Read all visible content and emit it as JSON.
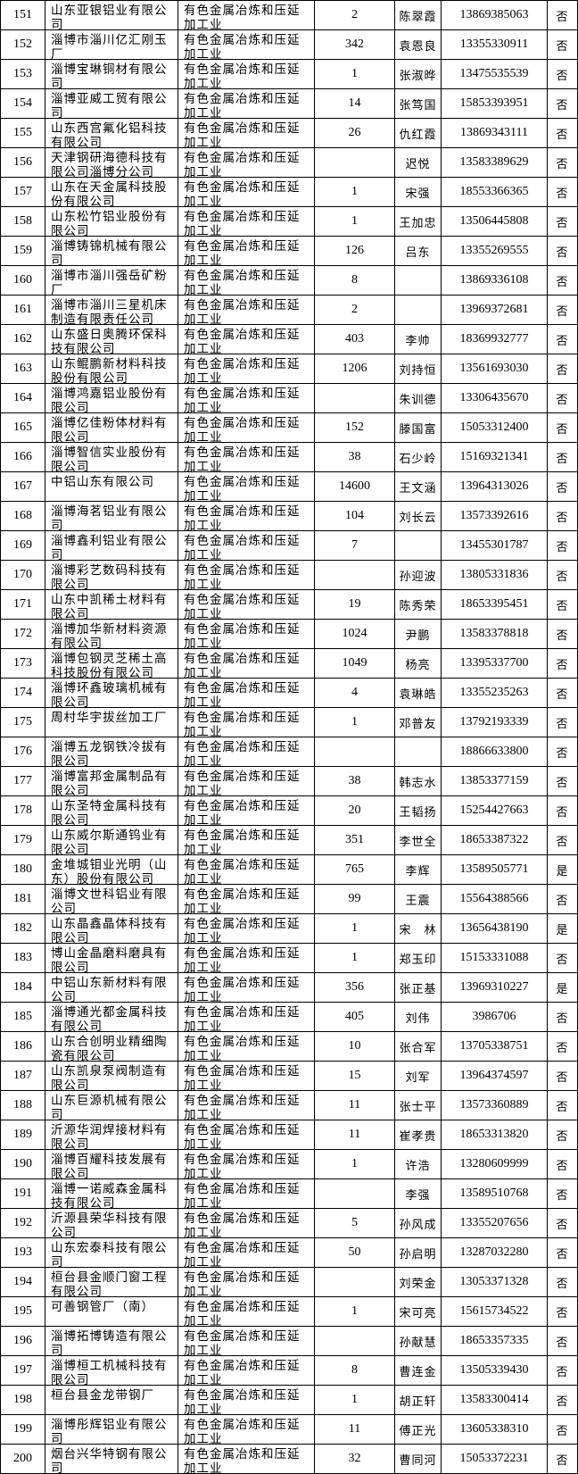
{
  "table": {
    "rows": [
      [
        151,
        "山东亚银铝业有限公司",
        "有色金属冶炼和压延加工业",
        2,
        "陈翠霞",
        "13869385063",
        "否"
      ],
      [
        152,
        "淄博市淄川亿汇刚玉厂",
        "有色金属冶炼和压延加工业",
        342,
        "袁恩良",
        "13355330911",
        "否"
      ],
      [
        153,
        "淄博宝琳铜材有限公司",
        "有色金属冶炼和压延加工业",
        1,
        "张淑晔",
        "13475535539",
        "否"
      ],
      [
        154,
        "淄博亚威工贸有限公司",
        "有色金属冶炼和压延加工业",
        14,
        "张笃国",
        "15853393951",
        "否"
      ],
      [
        155,
        "山东西宫氟化铝科技有限公司",
        "有色金属冶炼和压延加工业",
        26,
        "仇红霞",
        "13869343111",
        "否"
      ],
      [
        156,
        "天津钢研海德科技有限公司淄博分公司",
        "有色金属冶炼和压延加工业",
        null,
        "迟悦",
        "13583389629",
        "否"
      ],
      [
        157,
        "山东在天金属科技股份有限公司",
        "有色金属冶炼和压延加工业",
        1,
        "宋强",
        "18553366365",
        "否"
      ],
      [
        158,
        "山东松竹铝业股份有限公司",
        "有色金属冶炼和压延加工业",
        1,
        "王加忠",
        "13506445808",
        "否"
      ],
      [
        159,
        "淄博铸锦机械有限公司",
        "有色金属冶炼和压延加工业",
        126,
        "吕东",
        "13355269555",
        "否"
      ],
      [
        160,
        "淄博市淄川强岳矿粉厂",
        "有色金属冶炼和压延加工业",
        8,
        null,
        "13869336108",
        "否"
      ],
      [
        161,
        "淄博市淄川三星机床制造有限责任公司",
        "有色金属冶炼和压延加工业",
        2,
        null,
        "13969372681",
        "否"
      ],
      [
        162,
        "山东盛日奥腾环保科技有限公司",
        "有色金属冶炼和压延加工业",
        403,
        "李帅",
        "18369932777",
        "否"
      ],
      [
        163,
        "山东鲲鹏新材料科技股份有限公司",
        "有色金属冶炼和压延加工业",
        1206,
        "刘持恒",
        "13561693030",
        "否"
      ],
      [
        164,
        "淄博鸿嘉铝业股份有限公司",
        "有色金属冶炼和压延加工业",
        null,
        "朱训德",
        "13306435670",
        "否"
      ],
      [
        165,
        "淄博亿佳粉体材料有限公司",
        "有色金属冶炼和压延加工业",
        152,
        "滕国富",
        "15053312400",
        "否"
      ],
      [
        166,
        "淄博智信实业股份有限公司",
        "有色金属冶炼和压延加工业",
        38,
        "石少岭",
        "15169321341",
        "否"
      ],
      [
        167,
        "中铝山东有限公司",
        "有色金属冶炼和压延加工业",
        14600,
        "王文涵",
        "13964313026",
        "否"
      ],
      [
        168,
        "淄博海茗铝业有限公司",
        "有色金属冶炼和压延加工业",
        104,
        "刘长云",
        "13573392616",
        "否"
      ],
      [
        169,
        "淄博鑫利铝业有限公司",
        "有色金属冶炼和压延加工业",
        7,
        null,
        "13455301787",
        "否"
      ],
      [
        170,
        "淄博彩艺数码科技有限公司",
        "有色金属冶炼和压延加工业",
        null,
        "孙迎波",
        "13805331836",
        "否"
      ],
      [
        171,
        "山东中凯稀土材料有限公司",
        "有色金属冶炼和压延加工业",
        19,
        "陈秀荣",
        "18653395451",
        "否"
      ],
      [
        172,
        "淄博加华新材料资源有限公司",
        "有色金属冶炼和压延加工业",
        1024,
        "尹鹏",
        "13583378818",
        "否"
      ],
      [
        173,
        "淄博包钢灵芝稀土高科技股份有限公司",
        "有色金属冶炼和压延加工业",
        1049,
        "杨亮",
        "13395337700",
        "否"
      ],
      [
        174,
        "淄博环鑫玻璃机械有限公司",
        "有色金属冶炼和压延加工业",
        4,
        "袁琳皓",
        "13355235263",
        "否"
      ],
      [
        175,
        "周村华宇拔丝加工厂",
        "有色金属冶炼和压延加工业",
        1,
        "邓普友",
        "13792193339",
        "否"
      ],
      [
        176,
        "淄博五龙钢铁冷拔有限公司",
        "有色金属冶炼和压延加工业",
        null,
        null,
        "18866633800",
        "否"
      ],
      [
        177,
        "淄博富邦金属制品有限公司",
        "有色金属冶炼和压延加工业",
        38,
        "韩志水",
        "13853377159",
        "否"
      ],
      [
        178,
        "山东圣特金属科技有限公司",
        "有色金属冶炼和压延加工业",
        20,
        "王韬扬",
        "15254427663",
        "否"
      ],
      [
        179,
        "山东威尔斯通钨业有限公司",
        "有色金属冶炼和压延加工业",
        351,
        "李世全",
        "18653387322",
        "否"
      ],
      [
        180,
        "金堆城钼业光明（山东）股份有限公司",
        "有色金属冶炼和压延加工业",
        765,
        "李辉",
        "13589505771",
        "是"
      ],
      [
        181,
        "淄博文世科铝业有限公司",
        "有色金属冶炼和压延加工业",
        99,
        "王震",
        "15564388566",
        "否"
      ],
      [
        182,
        "山东晶鑫晶体科技有限公司",
        "有色金属冶炼和压延加工业",
        1,
        "宋　林",
        "13656438190",
        "是"
      ],
      [
        183,
        "博山金晶磨料磨具有限公司",
        "有色金属冶炼和压延加工业",
        1,
        "郑玉印",
        "15153331088",
        "否"
      ],
      [
        184,
        "中铝山东新材料有限公司",
        "有色金属冶炼和压延加工业",
        356,
        "张正基",
        "13969310227",
        "是"
      ],
      [
        185,
        "淄博通光都金属科技有限公司",
        "有色金属冶炼和压延加工业",
        405,
        "刘伟",
        "3986706",
        "否"
      ],
      [
        186,
        "山东合创明业精细陶瓷有限公司",
        "有色金属冶炼和压延加工业",
        10,
        "张合军",
        "13705338751",
        "否"
      ],
      [
        187,
        "山东凯泉泵阀制造有限公司",
        "有色金属冶炼和压延加工业",
        15,
        "刘军",
        "13964374597",
        "否"
      ],
      [
        188,
        "山东巨源机械有限公司",
        "有色金属冶炼和压延加工业",
        11,
        "张士平",
        "13573360889",
        "否"
      ],
      [
        189,
        "沂源华润焊接材料有限公司",
        "有色金属冶炼和压延加工业",
        11,
        "崔孝贵",
        "18653313820",
        "否"
      ],
      [
        190,
        "淄博百耀科技发展有限公司",
        "有色金属冶炼和压延加工业",
        1,
        "许浩",
        "13280609999",
        "否"
      ],
      [
        191,
        "淄博一诺威森金属科技有限公司",
        "有色金属冶炼和压延加工业",
        null,
        "李强",
        "13589510768",
        "否"
      ],
      [
        192,
        "沂源县荣华科技有限公司",
        "有色金属冶炼和压延加工业",
        5,
        "孙风成",
        "13355207656",
        "否"
      ],
      [
        193,
        "山东宏泰科技有限公司",
        "有色金属冶炼和压延加工业",
        50,
        "孙启明",
        "13287032280",
        "否"
      ],
      [
        194,
        "桓台县金顺门窗工程有限公司",
        "有色金属冶炼和压延加工业",
        null,
        "刘荣金",
        "13053371328",
        "否"
      ],
      [
        195,
        "可善钢管厂（南）",
        "有色金属冶炼和压延加工业",
        1,
        "宋可亮",
        "15615734522",
        "否"
      ],
      [
        196,
        "淄博拓博铸造有限公司",
        "有色金属冶炼和压延加工业",
        null,
        "孙献慧",
        "18653357335",
        "否"
      ],
      [
        197,
        "淄博桓工机械科技有限公司",
        "有色金属冶炼和压延加工业",
        8,
        "曹连金",
        "13505339430",
        "否"
      ],
      [
        198,
        "桓台县金龙带钢厂",
        "有色金属冶炼和压延加工业",
        1,
        "胡正轩",
        "13583300414",
        "否"
      ],
      [
        199,
        "淄博彤辉铝业有限公司",
        "有色金属冶炼和压延加工业",
        11,
        "傅正光",
        "13605338310",
        "否"
      ],
      [
        200,
        "烟台兴华特钢有限公司",
        "有色金属冶炼和压延加工业",
        32,
        "曹同河",
        "15053372231",
        "否"
      ]
    ]
  }
}
